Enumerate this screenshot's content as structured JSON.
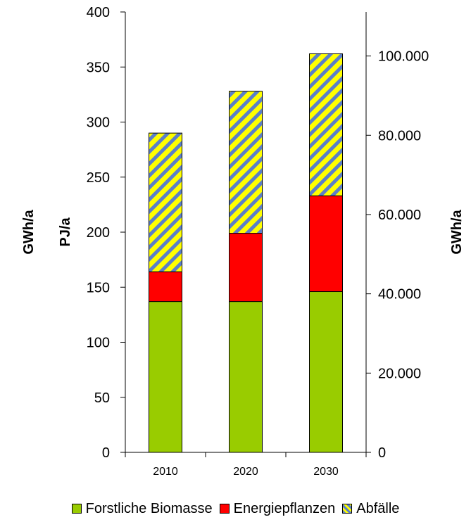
{
  "chart_data": {
    "type": "bar",
    "stacked": true,
    "categories": [
      "2010",
      "2020",
      "2030"
    ],
    "series": [
      {
        "name": "Forstliche Biomasse",
        "values": [
          137,
          137,
          146
        ],
        "color": "#99cc00",
        "pattern": "solid"
      },
      {
        "name": "Energiepflanzen",
        "values": [
          27,
          62,
          87
        ],
        "color": "#ff0000",
        "pattern": "solid"
      },
      {
        "name": "Abfälle",
        "values": [
          126,
          129,
          129
        ],
        "color": "#ffff00",
        "pattern": "diagonal-stripes",
        "stripe_color": "#5b7fc9"
      }
    ],
    "y_left": {
      "label": "PJ/a",
      "ylim": [
        0,
        400
      ],
      "ticks": [
        0,
        50,
        100,
        150,
        200,
        250,
        300,
        350,
        400
      ]
    },
    "y_right": {
      "label": "GWh/a",
      "ylim": [
        0,
        111111
      ],
      "ticks": [
        0,
        20000,
        40000,
        60000,
        80000,
        100000
      ],
      "tick_labels": [
        "0",
        "20.000",
        "40.000",
        "60.000",
        "80.000",
        "100.000"
      ]
    },
    "outer_label": "GWh/a",
    "grid": false,
    "legend": "bottom"
  }
}
